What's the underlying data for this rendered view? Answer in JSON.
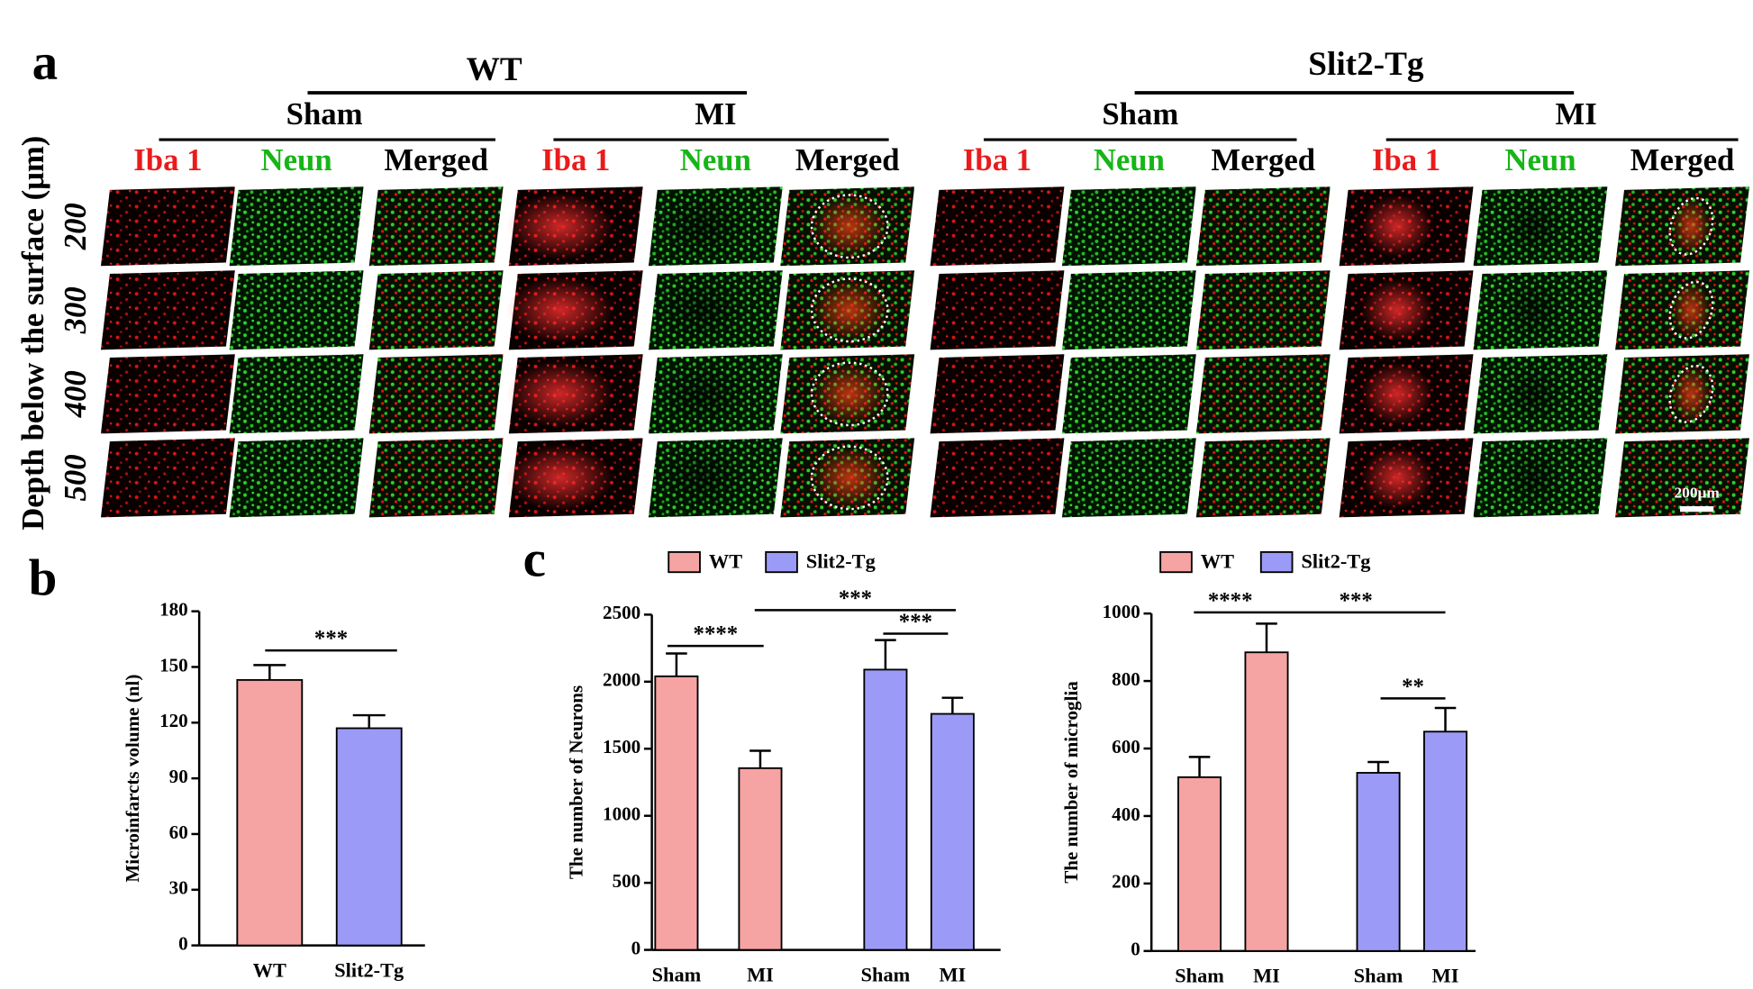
{
  "panel_a": {
    "label": "a",
    "groups": [
      {
        "title": "WT",
        "conditions": [
          {
            "title": "Sham",
            "channels": [
              "Iba 1",
              "Neun",
              "Merged"
            ]
          },
          {
            "title": "MI",
            "channels": [
              "Iba 1",
              "Neun",
              "Merged"
            ]
          }
        ]
      },
      {
        "title": "Slit2-Tg",
        "conditions": [
          {
            "title": "Sham",
            "channels": [
              "Iba 1",
              "Neun",
              "Merged"
            ]
          },
          {
            "title": "MI",
            "channels": [
              "Iba 1",
              "Neun",
              "Merged"
            ]
          }
        ]
      }
    ],
    "channel_colors": [
      "#ea1b1b",
      "#17b517",
      "#000000"
    ],
    "depth_axis_label": "Depth below the surface  (μm)",
    "depths": [
      200,
      300,
      400,
      500
    ],
    "scale_bar": "200μm"
  },
  "chart_data": [
    {
      "type": "bar",
      "label": "b",
      "ylabel": "Microinfarcts volume (nl)",
      "categories": [
        "WT",
        "Slit2-Tg"
      ],
      "values": [
        143,
        117
      ],
      "errors": [
        8,
        7
      ],
      "colors": [
        "#f5a3a3",
        "#9b9bf7"
      ],
      "ylim": [
        0,
        180
      ],
      "yticks": [
        0,
        30,
        60,
        90,
        120,
        150,
        180
      ],
      "annotations": [
        "***"
      ]
    },
    {
      "type": "bar",
      "label": "c",
      "ylabel": "The number of Neurons",
      "categories": [
        "Sham",
        "MI"
      ],
      "series": [
        {
          "name": "WT",
          "color": "#f5a3a3",
          "values": [
            2040,
            1355
          ],
          "errors": [
            170,
            130
          ]
        },
        {
          "name": "Slit2-Tg",
          "color": "#9b9bf7",
          "values": [
            2090,
            1760
          ],
          "errors": [
            220,
            120
          ]
        }
      ],
      "ylim": [
        0,
        2500
      ],
      "yticks": [
        0,
        500,
        1000,
        1500,
        2000,
        2500
      ],
      "annotations": [
        "****",
        "***",
        "***"
      ]
    },
    {
      "type": "bar",
      "ylabel": "The number of  microglia",
      "categories": [
        "Sham",
        "MI"
      ],
      "series": [
        {
          "name": "WT",
          "color": "#f5a3a3",
          "values": [
            515,
            885
          ],
          "errors": [
            60,
            85
          ]
        },
        {
          "name": "Slit2-Tg",
          "color": "#9b9bf7",
          "values": [
            528,
            650
          ],
          "errors": [
            32,
            70
          ]
        }
      ],
      "ylim": [
        0,
        1000
      ],
      "yticks": [
        0,
        200,
        400,
        600,
        800,
        1000
      ],
      "annotations": [
        "****",
        "***",
        "**"
      ]
    }
  ]
}
